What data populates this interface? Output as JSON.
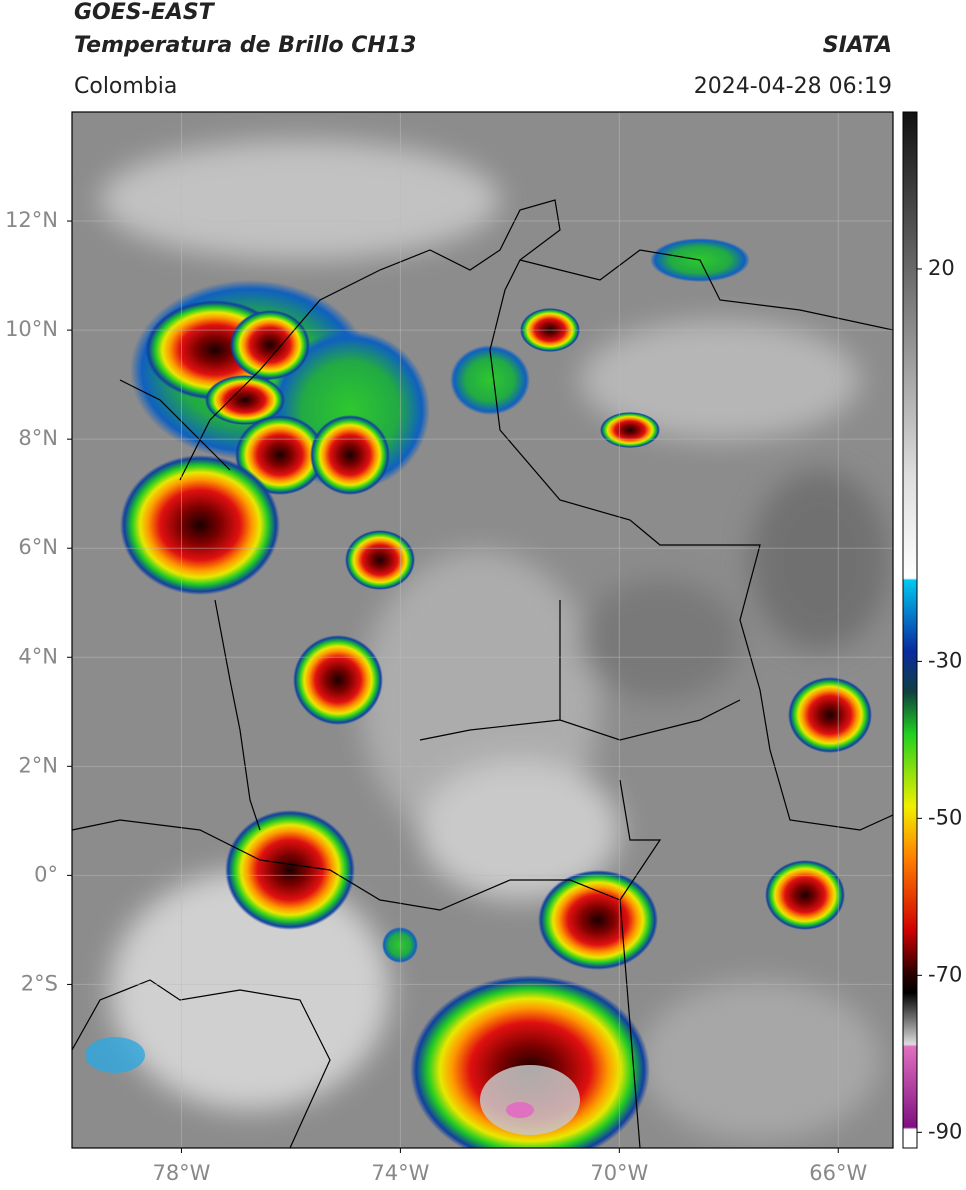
{
  "header": {
    "title": "GOES-EAST",
    "subtitle": "Temperatura de Brillo CH13",
    "source": "SIATA",
    "region": "Colombia",
    "datetime": "2024-04-28 06:19"
  },
  "map": {
    "xlim": [
      -80,
      -65
    ],
    "ylim": [
      -5,
      14
    ],
    "grid": true,
    "xticks": [
      {
        "value": -78,
        "label": "78°W"
      },
      {
        "value": -74,
        "label": "74°W"
      },
      {
        "value": -70,
        "label": "70°W"
      },
      {
        "value": -66,
        "label": "66°W"
      }
    ],
    "yticks": [
      {
        "value": 12,
        "label": "12°N"
      },
      {
        "value": 10,
        "label": "10°N"
      },
      {
        "value": 8,
        "label": "8°N"
      },
      {
        "value": 6,
        "label": "6°N"
      },
      {
        "value": 4,
        "label": "4°N"
      },
      {
        "value": 2,
        "label": "2°N"
      },
      {
        "value": 0,
        "label": "0°"
      },
      {
        "value": -2,
        "label": "2°S"
      }
    ]
  },
  "colorbar": {
    "ylim": [
      -92,
      40
    ],
    "yticks": [
      20,
      -30,
      -50,
      -70,
      -90
    ]
  }
}
